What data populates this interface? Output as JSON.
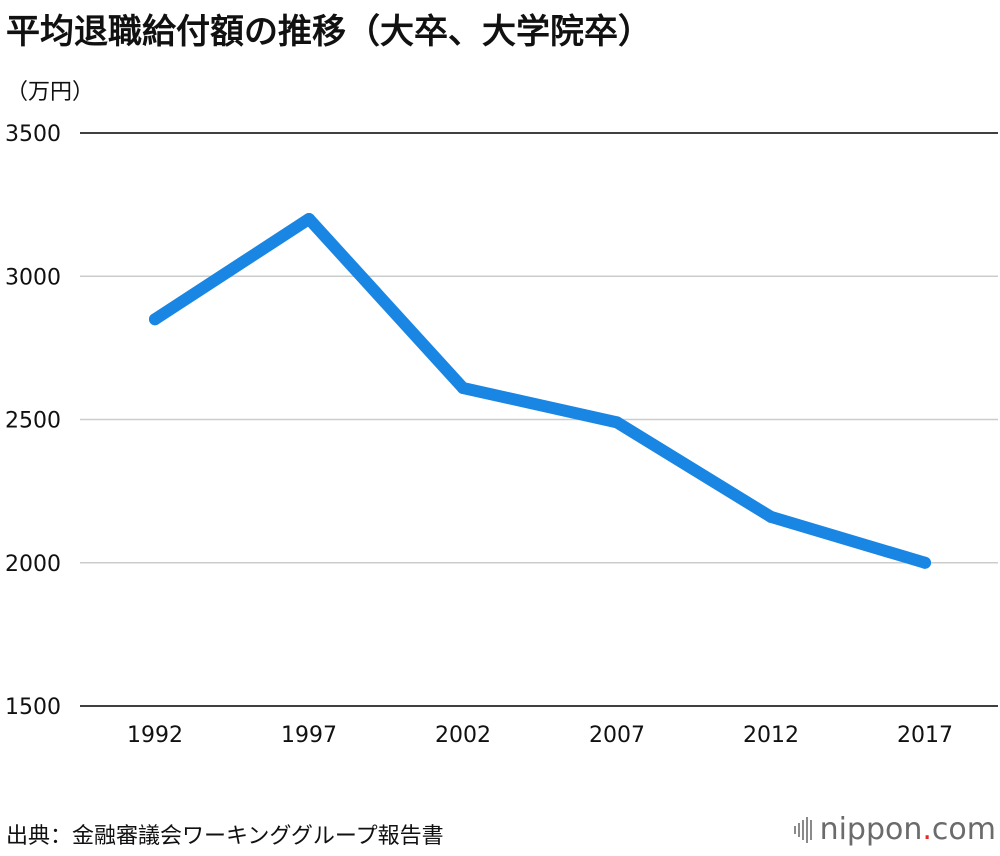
{
  "title": "平均退職給付額の推移（大卒、大学院卒）",
  "unit_label": "（万円）",
  "source": "出典：金融審議会ワーキンググループ報告書",
  "brand": {
    "name": "nippon",
    "dot": ".",
    "tld": "com",
    "icon": "soundwave-bars-icon"
  },
  "colors": {
    "line": "#1a86e3",
    "grid": "#cccccc",
    "axis": "#000000",
    "brand_dot": "#e62828"
  },
  "chart_data": {
    "type": "line",
    "x": [
      "1992",
      "1997",
      "2002",
      "2007",
      "2012",
      "2017"
    ],
    "series": [
      {
        "values": [
          2850,
          3200,
          2610,
          2490,
          2160,
          2000
        ]
      }
    ],
    "ylabel": "（万円）",
    "ylim": [
      1500,
      3500
    ],
    "yticks": [
      "1500",
      "2000",
      "2500",
      "3000",
      "3500"
    ],
    "grid": true
  }
}
